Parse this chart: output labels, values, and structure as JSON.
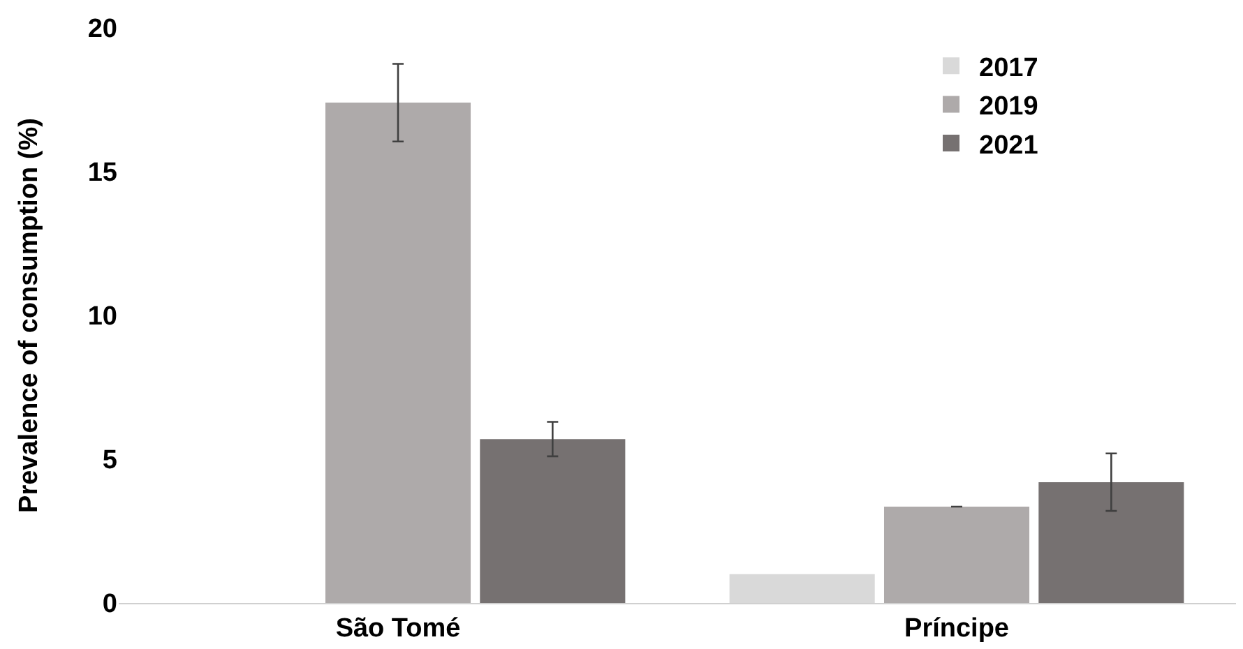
{
  "chart_data": {
    "type": "bar",
    "ylabel": "Prevalence of consumption (%)",
    "categories": [
      "São Tomé",
      "Príncipe"
    ],
    "series": [
      {
        "name": "2017",
        "color": "#d9d9d9",
        "values": [
          null,
          1.0
        ]
      },
      {
        "name": "2019",
        "color": "#aeaaaa",
        "values": [
          17.4,
          3.35
        ],
        "errors": [
          1.35,
          null
        ]
      },
      {
        "name": "2021",
        "color": "#767171",
        "values": [
          5.7,
          4.2
        ],
        "errors": [
          0.6,
          1.0
        ]
      }
    ],
    "ylim": [
      0,
      20
    ],
    "yticks": [
      0,
      5,
      10,
      15,
      20
    ],
    "legend": "top right"
  }
}
